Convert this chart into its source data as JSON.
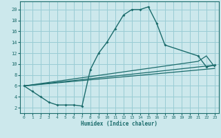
{
  "xlabel": "Humidex (Indice chaleur)",
  "bg_color": "#cce8ec",
  "grid_color": "#99ccd4",
  "line_color": "#1a6b6b",
  "xlim": [
    -0.5,
    23.5
  ],
  "ylim": [
    1,
    21.5
  ],
  "xticks": [
    0,
    1,
    2,
    3,
    4,
    5,
    6,
    7,
    8,
    9,
    10,
    11,
    12,
    13,
    14,
    15,
    16,
    17,
    18,
    19,
    20,
    21,
    22,
    23
  ],
  "yticks": [
    2,
    4,
    6,
    8,
    10,
    12,
    14,
    16,
    18,
    20
  ],
  "line1_x": [
    0,
    1,
    2,
    3,
    4,
    5,
    6,
    7,
    8,
    9,
    10,
    11,
    12,
    13,
    14,
    15,
    16,
    17,
    21,
    22,
    23
  ],
  "line1_y": [
    6,
    5,
    4,
    3,
    2.5,
    2.5,
    2.5,
    2.3,
    9,
    12,
    14,
    16.5,
    19,
    20,
    20,
    20.5,
    17.5,
    13.5,
    11.5,
    9.5,
    9.8
  ],
  "line2_x": [
    0,
    21,
    22,
    23
  ],
  "line2_y": [
    6,
    10.5,
    11.5,
    9.5
  ],
  "line3_x": [
    0,
    23
  ],
  "line3_y": [
    6,
    9.8
  ],
  "line4_x": [
    0,
    23
  ],
  "line4_y": [
    6,
    9.2
  ]
}
